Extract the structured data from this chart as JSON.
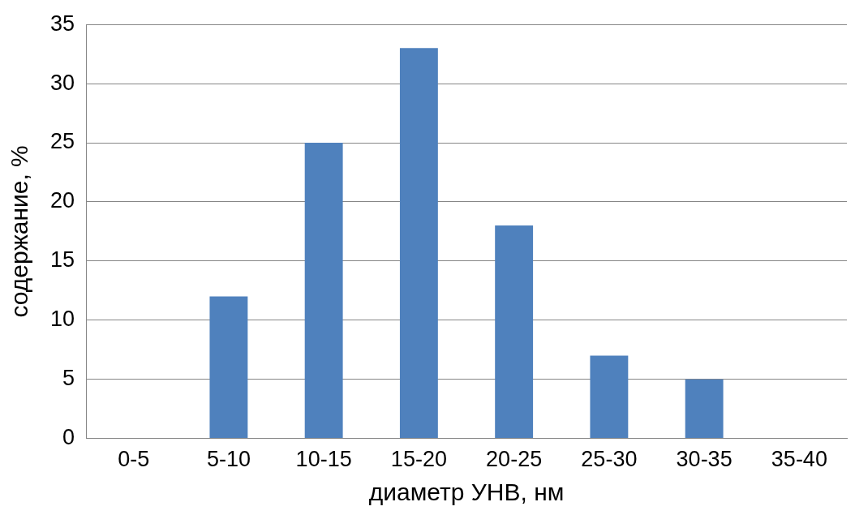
{
  "chart_data": {
    "type": "bar",
    "xlabel": "диаметр УНВ, нм",
    "ylabel": "содержание, %",
    "categories": [
      "0-5",
      "5-10",
      "10-15",
      "15-20",
      "20-25",
      "25-30",
      "30-35",
      "35-40"
    ],
    "values": [
      0,
      12,
      25,
      33,
      18,
      7,
      5,
      0
    ],
    "color": "#4f81bd",
    "ylim": [
      0,
      35
    ],
    "yticks": [
      0,
      5,
      10,
      15,
      20,
      25,
      30,
      35
    ],
    "grid": "y",
    "legend": false
  }
}
